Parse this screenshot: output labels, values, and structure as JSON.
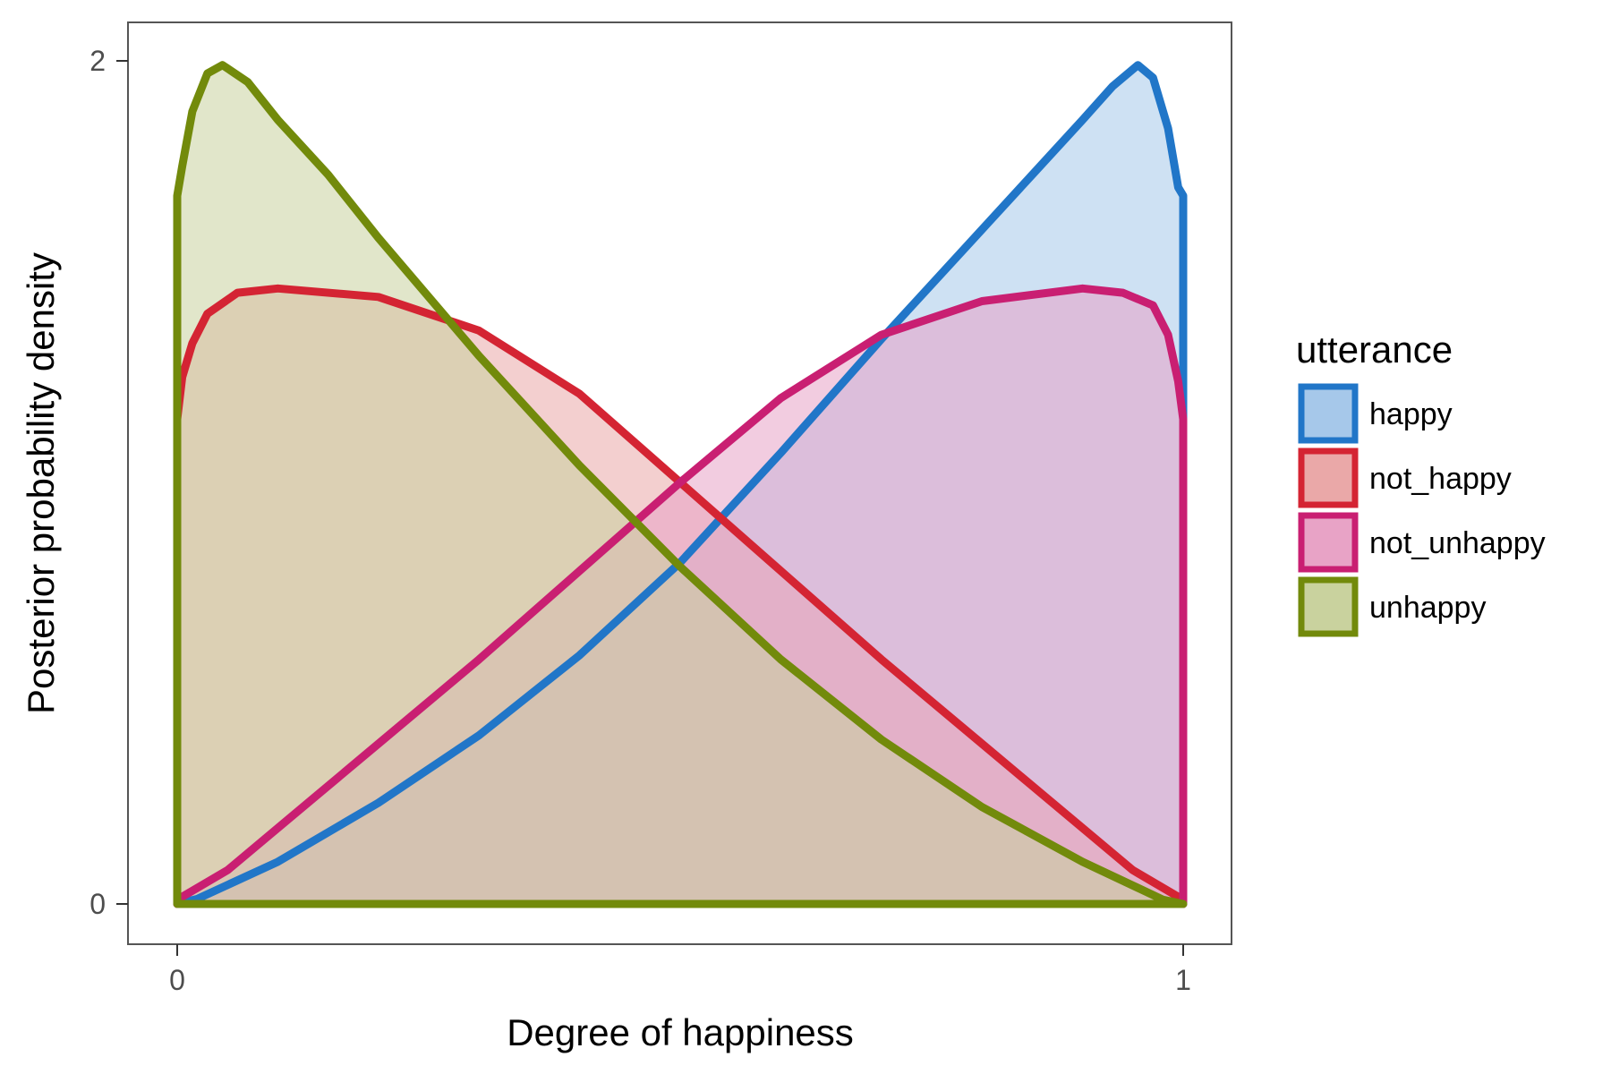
{
  "chart_data": {
    "type": "area",
    "title": "",
    "xlabel": "Degree of happiness",
    "ylabel": "Posterior probability density",
    "xlim": [
      0,
      1
    ],
    "ylim": [
      0,
      2
    ],
    "x_ticks": [
      0,
      1
    ],
    "x_tick_labels": [
      "0",
      "1"
    ],
    "y_ticks": [
      0,
      2
    ],
    "y_tick_labels": [
      "0",
      "2"
    ],
    "grid": false,
    "legend": {
      "title": "utterance",
      "position": "right"
    },
    "series": [
      {
        "name": "happy",
        "color": "#2176c8",
        "fill": "#a6c8ea",
        "x": [
          0,
          0.02,
          0.1,
          0.2,
          0.3,
          0.4,
          0.5,
          0.6,
          0.7,
          0.8,
          0.85,
          0.9,
          0.93,
          0.955,
          0.97,
          0.985,
          0.995,
          1
        ],
        "y": [
          0,
          0.012,
          0.1,
          0.24,
          0.4,
          0.59,
          0.81,
          1.07,
          1.34,
          1.6,
          1.73,
          1.86,
          1.94,
          1.99,
          1.96,
          1.84,
          1.7,
          1.68
        ]
      },
      {
        "name": "not_happy",
        "color": "#d42433",
        "fill": "#eaa8a8",
        "x": [
          0,
          0.005,
          0.015,
          0.03,
          0.06,
          0.1,
          0.2,
          0.3,
          0.4,
          0.5,
          0.6,
          0.7,
          0.8,
          0.9,
          0.95,
          1
        ],
        "y": [
          1.15,
          1.25,
          1.33,
          1.4,
          1.45,
          1.46,
          1.44,
          1.36,
          1.21,
          1.0,
          0.79,
          0.58,
          0.38,
          0.18,
          0.08,
          0.01
        ]
      },
      {
        "name": "not_unhappy",
        "color": "#c91f72",
        "fill": "#e8a3c6",
        "x": [
          0,
          0.05,
          0.1,
          0.2,
          0.3,
          0.4,
          0.5,
          0.6,
          0.7,
          0.8,
          0.9,
          0.94,
          0.97,
          0.985,
          0.995,
          1
        ],
        "y": [
          0.01,
          0.08,
          0.18,
          0.38,
          0.58,
          0.79,
          1.0,
          1.2,
          1.35,
          1.43,
          1.46,
          1.45,
          1.42,
          1.35,
          1.24,
          1.15
        ]
      },
      {
        "name": "unhappy",
        "color": "#728a0b",
        "fill": "#c9d29e",
        "x": [
          0,
          0.005,
          0.015,
          0.03,
          0.045,
          0.07,
          0.1,
          0.15,
          0.2,
          0.3,
          0.4,
          0.5,
          0.6,
          0.7,
          0.8,
          0.9,
          0.98,
          1
        ],
        "y": [
          1.68,
          1.75,
          1.88,
          1.97,
          1.99,
          1.95,
          1.86,
          1.73,
          1.58,
          1.3,
          1.04,
          0.8,
          0.58,
          0.39,
          0.23,
          0.1,
          0.01,
          0
        ]
      }
    ]
  }
}
